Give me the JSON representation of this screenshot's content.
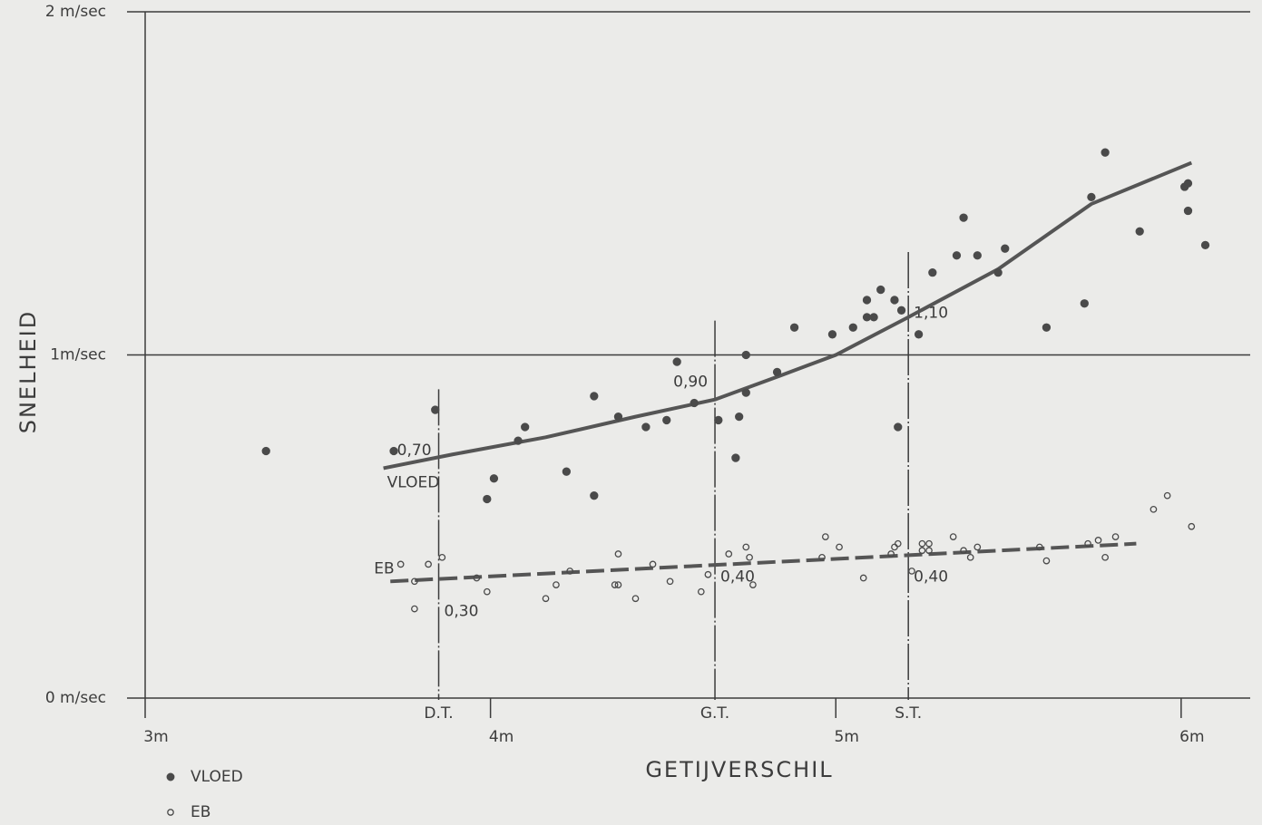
{
  "chart_data": {
    "type": "scatter",
    "x_label": "GETIJVERSCHIL",
    "y_label": "SNELHEID",
    "xlim": [
      3,
      6.2
    ],
    "ylim": [
      0,
      2
    ],
    "xticks": [
      {
        "value": 3,
        "label": "3m"
      },
      {
        "value": 4,
        "label": "4m"
      },
      {
        "value": 5,
        "label": "5m"
      },
      {
        "value": 6,
        "label": "6m"
      }
    ],
    "yticks": [
      {
        "value": 0,
        "label": "0 m/sec"
      },
      {
        "value": 1,
        "label": "1m/sec"
      },
      {
        "value": 2,
        "label": "2 m/sec"
      }
    ],
    "grid": true,
    "legend": "bottom-left",
    "series": [
      {
        "name": "VLOED",
        "color": "#4a4a4a",
        "marker": "filled",
        "x": [
          3.35,
          3.72,
          3.84,
          3.99,
          4.01,
          4.08,
          4.1,
          4.22,
          4.3,
          4.3,
          4.37,
          4.45,
          4.51,
          4.54,
          4.59,
          4.66,
          4.71,
          4.72,
          4.74,
          4.74,
          4.83,
          4.88,
          4.99,
          5.05,
          5.09,
          5.09,
          5.11,
          5.13,
          5.17,
          5.18,
          5.19,
          5.24,
          5.28,
          5.35,
          5.37,
          5.41,
          5.47,
          5.49,
          5.61,
          5.72,
          5.74,
          5.78,
          5.88,
          6.01,
          6.02,
          6.02,
          6.07
        ],
        "values": [
          0.72,
          0.72,
          0.84,
          0.58,
          0.64,
          0.75,
          0.79,
          0.66,
          0.88,
          0.59,
          0.82,
          0.79,
          0.81,
          0.98,
          0.86,
          0.81,
          0.7,
          0.82,
          1.0,
          0.89,
          0.95,
          1.08,
          1.06,
          1.08,
          1.11,
          1.16,
          1.11,
          1.19,
          1.16,
          0.79,
          1.13,
          1.06,
          1.24,
          1.29,
          1.4,
          1.29,
          1.24,
          1.31,
          1.08,
          1.15,
          1.46,
          1.59,
          1.36,
          1.49,
          1.5,
          1.42,
          1.32
        ]
      },
      {
        "name": "EB",
        "color": "#4a4a4a",
        "marker": "open",
        "x": [
          3.74,
          3.78,
          3.78,
          3.82,
          3.86,
          3.96,
          3.99,
          4.16,
          4.19,
          4.23,
          4.36,
          4.37,
          4.37,
          4.42,
          4.47,
          4.52,
          4.61,
          4.63,
          4.69,
          4.74,
          4.75,
          4.76,
          4.96,
          4.97,
          5.01,
          5.08,
          5.16,
          5.17,
          5.18,
          5.22,
          5.25,
          5.25,
          5.27,
          5.27,
          5.34,
          5.37,
          5.39,
          5.41,
          5.59,
          5.61,
          5.73,
          5.76,
          5.78,
          5.81,
          5.92,
          5.96,
          6.03
        ],
        "values": [
          0.39,
          0.34,
          0.26,
          0.39,
          0.41,
          0.35,
          0.31,
          0.29,
          0.33,
          0.37,
          0.33,
          0.33,
          0.42,
          0.29,
          0.39,
          0.34,
          0.31,
          0.36,
          0.42,
          0.44,
          0.41,
          0.33,
          0.41,
          0.47,
          0.44,
          0.35,
          0.42,
          0.44,
          0.45,
          0.37,
          0.43,
          0.45,
          0.45,
          0.43,
          0.47,
          0.43,
          0.41,
          0.44,
          0.44,
          0.4,
          0.45,
          0.46,
          0.41,
          0.47,
          0.55,
          0.59,
          0.5
        ]
      }
    ],
    "lines": [
      {
        "name": "VLOED",
        "style": "solid",
        "x": [
          3.69,
          3.89,
          4.16,
          4.42,
          4.65,
          4.84,
          5.0,
          5.21,
          5.47,
          5.74,
          6.03
        ],
        "values": [
          0.67,
          0.71,
          0.76,
          0.82,
          0.87,
          0.94,
          1.0,
          1.11,
          1.25,
          1.44,
          1.56
        ]
      },
      {
        "name": "EB",
        "style": "dashed",
        "x": [
          3.71,
          5.87
        ],
        "values": [
          0.34,
          0.45
        ]
      }
    ],
    "reference_lines": [
      {
        "label": "D.T.",
        "x": 3.85,
        "annotations": [
          {
            "value": 0.7,
            "label": "0,70"
          },
          {
            "value": 0.3,
            "label": "0,30"
          }
        ]
      },
      {
        "label": "G.T.",
        "x": 4.65,
        "annotations": [
          {
            "value": 0.9,
            "label": "0,90"
          },
          {
            "value": 0.4,
            "label": "0,40"
          }
        ]
      },
      {
        "label": "S.T.",
        "x": 5.21,
        "annotations": [
          {
            "value": 1.1,
            "label": "1,10"
          },
          {
            "value": 0.4,
            "label": "0,40"
          }
        ]
      }
    ]
  }
}
